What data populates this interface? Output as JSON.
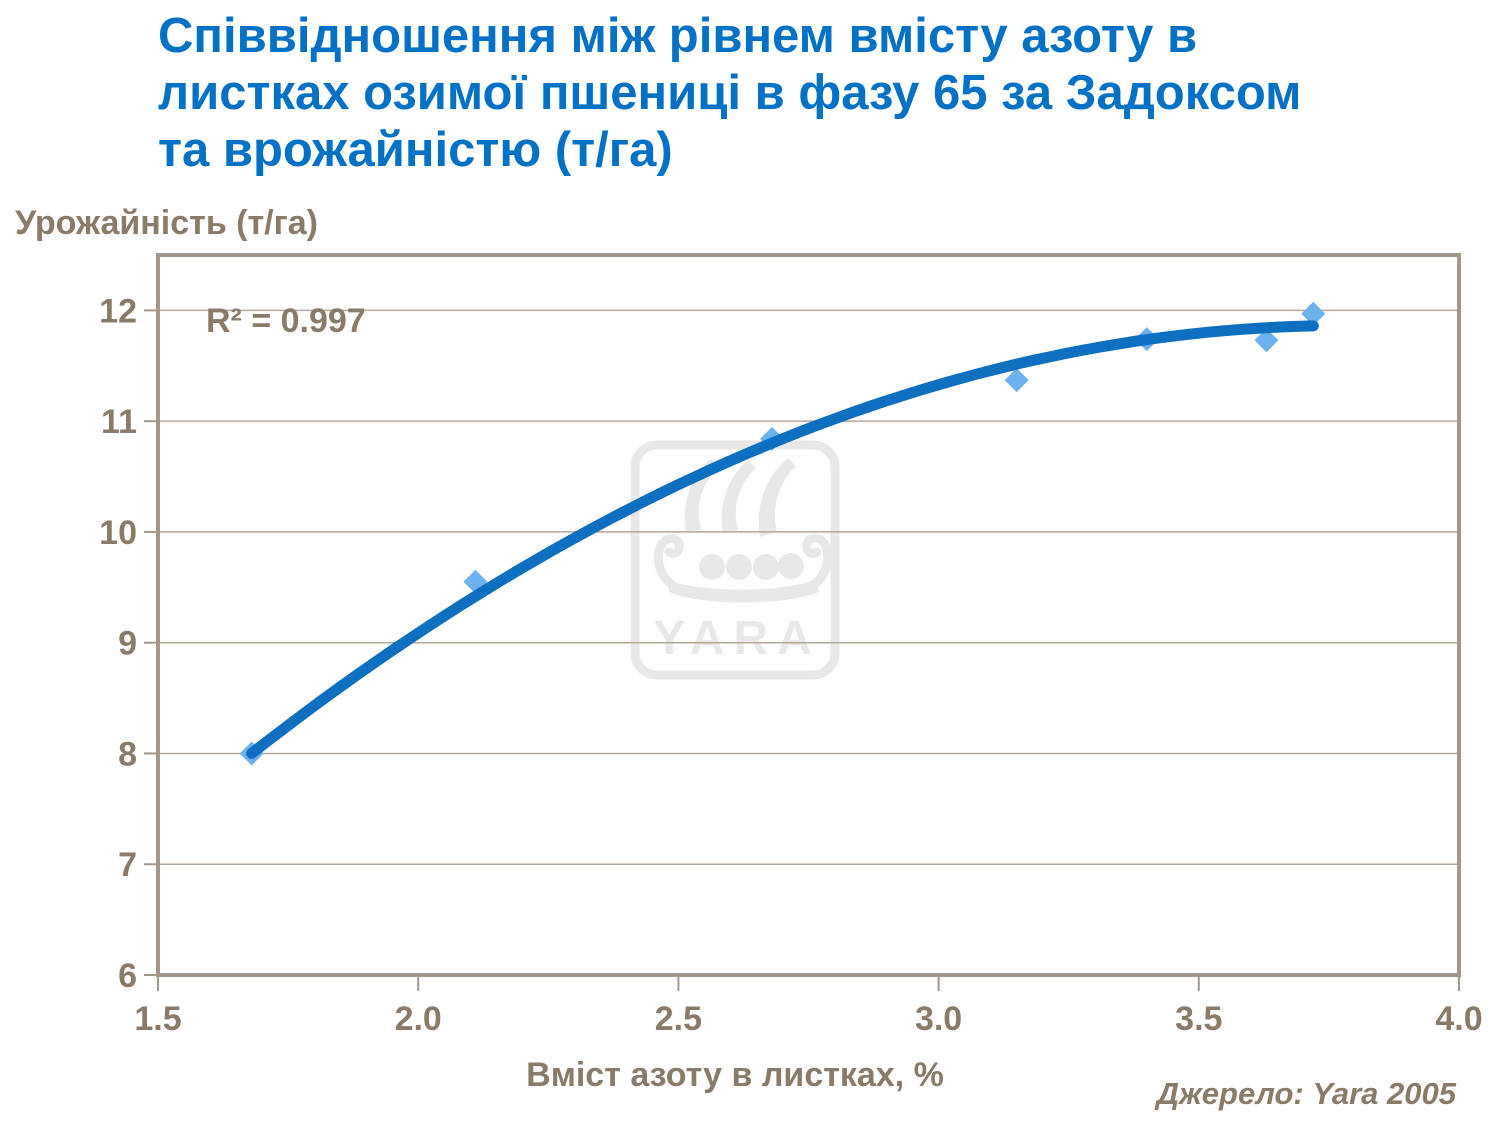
{
  "slide": {
    "title_lines": [
      "Співвідношення між рівнем вмісту азоту в",
      "листках озимої пшениці в фазу 65 за Задоксом",
      "та врожайністю (т/га)"
    ],
    "source": "Джерело: Yara 2005"
  },
  "watermark_text": "YARA",
  "colors": {
    "title": "#0071C5",
    "axis_text": "#8a7a68",
    "gridline": "#b3a79a",
    "plot_border": "#a3968a",
    "tick": "#a3968a",
    "trend_line": "#0d6fbf",
    "marker": "#6cb2ef",
    "watermark": "#e8e8e8",
    "background": "#ffffff"
  },
  "chart_data": {
    "type": "scatter",
    "title": "Співвідношення між рівнем вмісту азоту в листках озимої пшениці в фазу 65 за Задоксом та врожайністю (т/га)",
    "xlabel": "Вміст азоту в листках, %",
    "ylabel": "Урожайність (т/га)",
    "xlim": [
      1.5,
      4.0
    ],
    "ylim": [
      6,
      12.5
    ],
    "x_ticks": [
      1.5,
      2.0,
      2.5,
      3.0,
      3.5,
      4.0
    ],
    "y_ticks": [
      6,
      7,
      8,
      9,
      10,
      11,
      12
    ],
    "grid": "horizontal-only",
    "legend": "none",
    "annotation": "R² = 0.997",
    "points": [
      {
        "x": 1.68,
        "y": 8.0
      },
      {
        "x": 2.11,
        "y": 9.55
      },
      {
        "x": 2.68,
        "y": 10.84
      },
      {
        "x": 3.15,
        "y": 11.37
      },
      {
        "x": 3.4,
        "y": 11.74
      },
      {
        "x": 3.63,
        "y": 11.73
      },
      {
        "x": 3.72,
        "y": 11.97
      }
    ],
    "trendline": {
      "kind": "polynomial-2",
      "r2": 0.997,
      "coeffs": [
        -0.645,
        6.6155,
        -0.8747
      ],
      "x_domain": [
        1.68,
        3.72
      ]
    }
  }
}
